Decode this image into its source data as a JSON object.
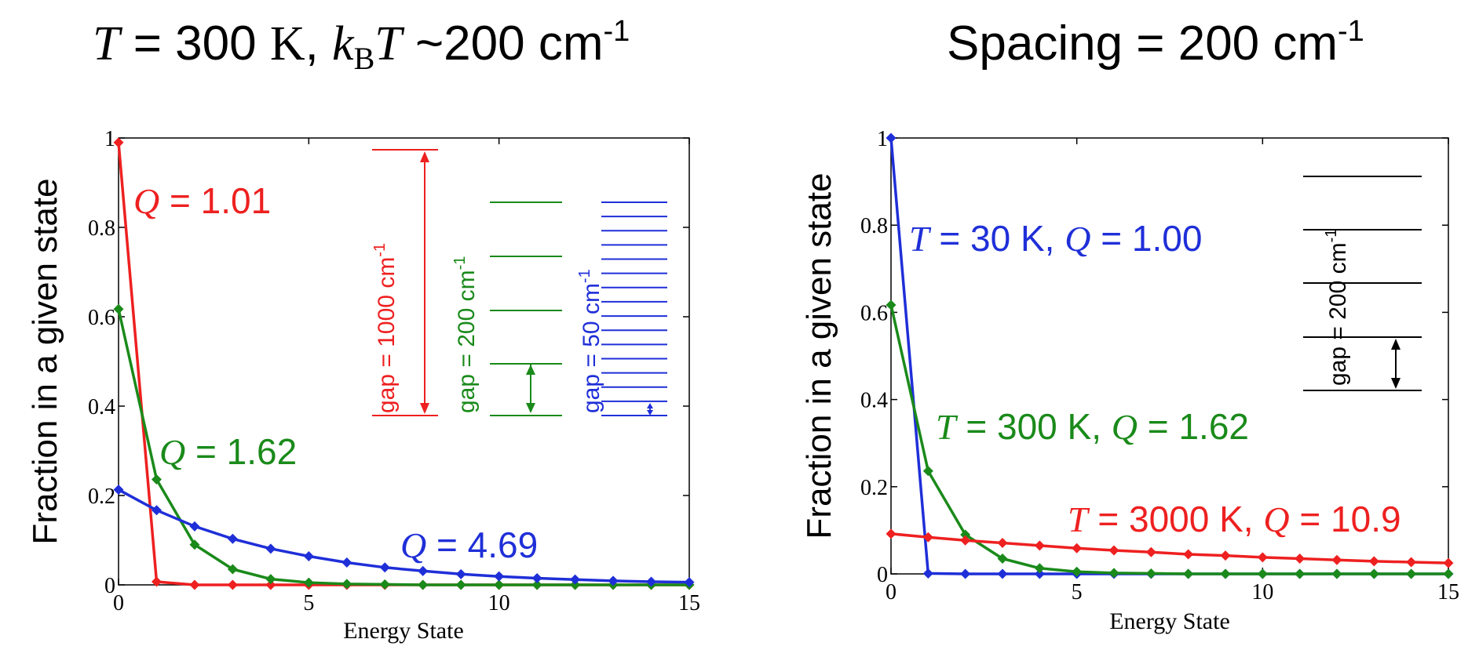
{
  "colors": {
    "red": "#ee2020",
    "green": "#1a8a1a",
    "blue": "#1f2fd8",
    "black": "#000000"
  },
  "left_title": {
    "T": "T",
    "eq": " = 300 ",
    "K": "K",
    "comma": ", ",
    "k": "k",
    "B": "B",
    "T2": "T",
    "approx": " ~200 cm",
    "sup": "-1"
  },
  "right_title": {
    "text": "Spacing = 200 cm",
    "sup": "-1"
  },
  "chart_data": [
    {
      "type": "line",
      "ylabel": "Fraction in a given state",
      "xlabel": "Energy State",
      "xlim": [
        0,
        15
      ],
      "ylim": [
        0,
        1
      ],
      "xticks": [
        0,
        5,
        10,
        15
      ],
      "yticks": [
        0,
        0.2,
        0.4,
        0.6,
        0.8,
        1
      ],
      "ytick_labels": [
        "0",
        "0.2",
        "0.4",
        "0.6",
        "0.8",
        "1"
      ],
      "xtick_labels": [
        "0",
        "5",
        "10",
        "15"
      ],
      "grid": false,
      "x": [
        0,
        1,
        2,
        3,
        4,
        5,
        6,
        7,
        8,
        9,
        10,
        11,
        12,
        13,
        14,
        15
      ],
      "series": [
        {
          "color": "red",
          "values": [
            0.99,
            0.007,
            0.0,
            0.0,
            0.0,
            0.0,
            0.0,
            0.0,
            0.0,
            0.0,
            0.0,
            0.0,
            0.0,
            0.0,
            0.0,
            0.0
          ]
        },
        {
          "color": "green",
          "values": [
            0.617,
            0.236,
            0.09,
            0.035,
            0.013,
            0.005,
            0.002,
            0.001,
            0.0,
            0.0,
            0.0,
            0.0,
            0.0,
            0.0,
            0.0,
            0.0
          ]
        },
        {
          "color": "blue",
          "values": [
            0.213,
            0.167,
            0.131,
            0.103,
            0.081,
            0.064,
            0.05,
            0.039,
            0.031,
            0.024,
            0.019,
            0.015,
            0.012,
            0.009,
            0.007,
            0.006
          ]
        }
      ],
      "annotations": [
        {
          "color": "red",
          "Q": "Q",
          "text": " = 1.01"
        },
        {
          "color": "green",
          "Q": "Q",
          "text": " = 1.62"
        },
        {
          "color": "blue",
          "Q": "Q",
          "text": " = 4.69"
        }
      ],
      "gap_labels": [
        {
          "color": "red",
          "text": "gap = 1000 cm",
          "sup": "-1"
        },
        {
          "color": "green",
          "text": "gap = 200 cm",
          "sup": "-1"
        },
        {
          "color": "blue",
          "text": "gap = 50 cm",
          "sup": "-1"
        }
      ]
    },
    {
      "type": "line",
      "ylabel": "Fraction in a given state",
      "xlabel": "Energy State",
      "xlim": [
        0,
        15
      ],
      "ylim": [
        0,
        1
      ],
      "xticks": [
        0,
        5,
        10,
        15
      ],
      "yticks": [
        0,
        0.2,
        0.4,
        0.6,
        0.8,
        1
      ],
      "ytick_labels": [
        "0",
        "0.2",
        "0.4",
        "0.6",
        "0.8",
        "1"
      ],
      "xtick_labels": [
        "0",
        "5",
        "10",
        "15"
      ],
      "grid": false,
      "x": [
        0,
        1,
        2,
        3,
        4,
        5,
        6,
        7,
        8,
        9,
        10,
        11,
        12,
        13,
        14,
        15
      ],
      "series": [
        {
          "color": "blue",
          "values": [
            1.0,
            0.001,
            0.0,
            0.0,
            0.0,
            0.0,
            0.0,
            0.0,
            0.0,
            0.0,
            0.0,
            0.0,
            0.0,
            0.0,
            0.0,
            0.0
          ]
        },
        {
          "color": "green",
          "values": [
            0.617,
            0.236,
            0.09,
            0.035,
            0.013,
            0.005,
            0.002,
            0.001,
            0.0,
            0.0,
            0.0,
            0.0,
            0.0,
            0.0,
            0.0,
            0.0
          ]
        },
        {
          "color": "red",
          "values": [
            0.092,
            0.084,
            0.077,
            0.071,
            0.065,
            0.059,
            0.054,
            0.05,
            0.045,
            0.042,
            0.038,
            0.035,
            0.032,
            0.029,
            0.027,
            0.025
          ]
        }
      ],
      "annotations": [
        {
          "color": "blue",
          "T": "T",
          "mid": " = 30 K, ",
          "Q": "Q",
          "text": " = 1.00"
        },
        {
          "color": "green",
          "T": "T",
          "mid": " = 300 K, ",
          "Q": "Q",
          "text": " = 1.62"
        },
        {
          "color": "red",
          "T": "T",
          "mid": " = 3000 K, ",
          "Q": "Q",
          "text": " = 10.9"
        }
      ],
      "gap_labels": [
        {
          "color": "black",
          "text": "gap = 200 cm",
          "sup": "-1"
        }
      ]
    }
  ]
}
